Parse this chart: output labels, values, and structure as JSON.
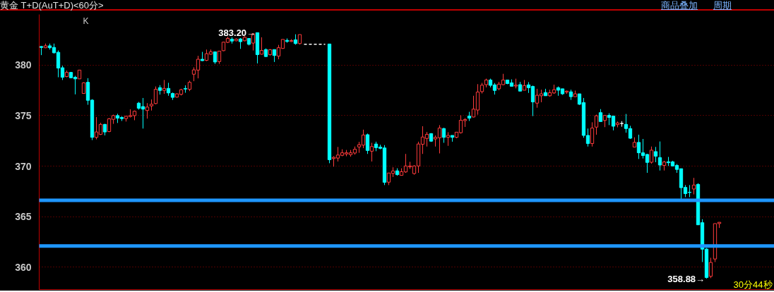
{
  "chart_data": {
    "type": "candlestick",
    "title": "黄金 T+D(AuT+D)<60分>",
    "annotations": [
      "K",
      "商品叠加",
      "周期",
      "30分44秒",
      "383.20→",
      "358.88→"
    ],
    "categories": [
      null,
      null,
      null,
      null,
      null,
      null,
      null,
      null,
      null,
      null,
      null,
      null,
      null,
      null,
      null,
      null,
      null,
      null,
      null,
      null,
      null,
      null,
      null,
      null,
      null,
      null,
      null,
      null,
      null,
      null,
      null,
      null,
      null,
      null,
      null,
      null,
      null,
      null,
      null,
      null,
      null,
      null,
      null,
      null,
      null,
      null,
      null,
      null,
      null,
      null,
      null,
      null,
      null,
      null,
      null,
      null,
      null,
      null,
      null,
      null,
      null,
      null,
      null,
      null,
      null,
      null,
      null,
      null,
      null,
      null,
      null,
      null,
      null,
      null,
      null,
      null,
      null,
      null,
      null,
      null,
      null,
      null,
      null,
      null,
      null,
      null,
      null,
      null,
      null,
      null,
      null,
      null,
      null,
      null,
      null,
      null,
      null,
      null,
      null,
      null,
      null,
      null,
      null,
      null,
      null,
      null,
      null,
      null,
      null,
      null,
      null,
      null,
      null,
      null,
      null,
      null,
      null,
      null,
      null,
      null,
      null,
      null,
      null,
      null,
      null,
      null,
      null,
      null,
      null,
      null,
      null,
      null,
      null,
      null,
      null,
      null,
      null,
      null,
      null,
      null,
      null,
      null,
      null,
      null,
      null,
      null,
      null,
      null,
      null,
      null,
      null,
      null,
      null,
      null,
      null,
      null,
      null,
      null,
      null,
      null,
      null
    ],
    "ylim": [
      357.8,
      385
    ],
    "yticks": [
      360,
      365,
      370,
      375,
      380
    ],
    "grid": "y",
    "tick_labels": "y",
    "ref_lines": [
      {
        "axis": "y",
        "value": 366.62,
        "color": "#1e96ff"
      },
      {
        "axis": "y",
        "value": 362.1,
        "color": "#1e96ff"
      }
    ],
    "series": [
      {
        "ohlc": [
          [
            381.83,
            381.87,
            380.98,
            381.74
          ],
          [
            381.71,
            382.12,
            381.67,
            381.9
          ],
          [
            381.9,
            382.12,
            381.53,
            381.71
          ],
          [
            381.74,
            382.12,
            381.14,
            381.21
          ],
          [
            381.26,
            381.44,
            378.79,
            379.7
          ],
          [
            379.73,
            379.93,
            378.52,
            378.79
          ],
          [
            378.86,
            379.45,
            378.79,
            379.27
          ],
          [
            379.27,
            379.32,
            378.7,
            378.74
          ],
          [
            378.79,
            378.93,
            377.1,
            378.63
          ],
          [
            378.63,
            379.5,
            378.63,
            379.5
          ],
          [
            377.19,
            378.29,
            377.15,
            378.24
          ],
          [
            378.29,
            378.7,
            376.07,
            376.51
          ],
          [
            376.53,
            376.62,
            372.58,
            372.85
          ],
          [
            372.85,
            374.86,
            372.65,
            373.38
          ],
          [
            373.15,
            374.29,
            373.08,
            374.13
          ],
          [
            374.13,
            374.18,
            373.04,
            373.38
          ],
          [
            373.42,
            374.75,
            373.36,
            374.68
          ],
          [
            374.63,
            375.09,
            374.18,
            375.0
          ],
          [
            375.0,
            375.18,
            374.27,
            374.75
          ],
          [
            374.82,
            374.93,
            374.47,
            374.7
          ],
          [
            374.7,
            374.98,
            374.41,
            374.93
          ],
          [
            374.91,
            375.62,
            374.82,
            375.0
          ],
          [
            375.0,
            375.5,
            374.54,
            375.43
          ],
          [
            376.23,
            376.35,
            375.59,
            375.73
          ],
          [
            375.89,
            376.74,
            373.72,
            375.64
          ],
          [
            375.5,
            376.23,
            374.7,
            375.84
          ],
          [
            375.96,
            376.6,
            375.5,
            376.12
          ],
          [
            376.19,
            377.88,
            376.12,
            377.6
          ],
          [
            377.76,
            378.01,
            377.08,
            377.49
          ],
          [
            377.49,
            378.52,
            377.15,
            377.69
          ],
          [
            377.69,
            378.24,
            376.96,
            377.24
          ],
          [
            377.19,
            377.28,
            376.55,
            376.8
          ],
          [
            376.83,
            377.19,
            376.78,
            377.15
          ],
          [
            377.1,
            377.65,
            376.99,
            377.56
          ],
          [
            377.67,
            377.99,
            377.26,
            377.63
          ],
          [
            377.6,
            378.45,
            377.42,
            378.29
          ],
          [
            379.09,
            379.77,
            378.4,
            379.52
          ],
          [
            379.5,
            380.91,
            378.68,
            380.57
          ],
          [
            380.57,
            381.3,
            380.39,
            380.43
          ],
          [
            380.46,
            381.53,
            380.39,
            381.12
          ],
          [
            381.07,
            381.53,
            381.03,
            381.3
          ],
          [
            381.3,
            381.3,
            380.11,
            380.3
          ],
          [
            380.34,
            381.37,
            380.11,
            381.37
          ],
          [
            381.42,
            382.31,
            381.37,
            382.26
          ],
          [
            382.24,
            382.79,
            382.17,
            382.63
          ],
          [
            382.56,
            382.74,
            382.12,
            382.37
          ],
          [
            382.4,
            382.63,
            382.35,
            382.56
          ],
          [
            382.58,
            382.67,
            381.6,
            382.31
          ],
          [
            382.4,
            382.85,
            382.35,
            382.74
          ],
          [
            382.63,
            382.63,
            381.94,
            382.05
          ],
          [
            382.17,
            383.15,
            381.44,
            383.08
          ],
          [
            383.2,
            383.2,
            380.16,
            381.03
          ],
          [
            381.07,
            382.74,
            381.03,
            381.44
          ],
          [
            381.53,
            381.64,
            380.8,
            380.84
          ],
          [
            381.03,
            381.58,
            380.94,
            381.51
          ],
          [
            381.53,
            381.53,
            380.3,
            380.94
          ],
          [
            380.89,
            381.99,
            380.57,
            381.71
          ],
          [
            381.64,
            382.53,
            381.6,
            382.53
          ],
          [
            382.44,
            382.63,
            382.21,
            382.33
          ],
          [
            382.33,
            382.56,
            382.28,
            382.42
          ],
          [
            382.49,
            383.04,
            382.01,
            382.12
          ],
          [
            382.12,
            383.01,
            382.03,
            383.01
          ],
          null,
          null,
          null,
          null,
          null,
          null,
          [
            382.08,
            382.08,
            370.29,
            370.64
          ],
          [
            370.75,
            370.98,
            369.95,
            370.87
          ],
          [
            370.8,
            371.9,
            370.46,
            371.1
          ],
          [
            371.07,
            371.67,
            370.98,
            371.32
          ],
          [
            371.21,
            371.6,
            370.98,
            371.32
          ],
          [
            371.14,
            371.6,
            370.94,
            371.32
          ],
          [
            371.3,
            371.94,
            371.14,
            371.67
          ],
          [
            371.9,
            372.4,
            371.32,
            372.12
          ],
          [
            372.08,
            373.61,
            371.78,
            373.08
          ],
          [
            373.11,
            373.22,
            371.21,
            371.55
          ],
          [
            371.48,
            372.31,
            370.46,
            371.94
          ],
          [
            372.19,
            372.42,
            371.48,
            371.83
          ],
          [
            371.89,
            372.12,
            371.67,
            371.76
          ],
          [
            371.8,
            372.08,
            368.13,
            368.4
          ],
          [
            368.42,
            369.32,
            368.13,
            369.32
          ],
          [
            369.29,
            369.89,
            368.93,
            369.52
          ],
          [
            369.54,
            369.79,
            369.06,
            369.16
          ],
          [
            369.09,
            369.79,
            369.09,
            369.45
          ],
          [
            369.43,
            371.21,
            369.34,
            370.02
          ],
          [
            369.93,
            370.43,
            369.73,
            370.02
          ],
          [
            369.27,
            370.09,
            369.16,
            370.02
          ],
          [
            370.02,
            372.42,
            369.34,
            372.19
          ],
          [
            372.17,
            373.95,
            371.21,
            372.88
          ],
          [
            372.74,
            373.38,
            371.94,
            373.15
          ],
          [
            373.22,
            373.26,
            372.4,
            372.47
          ],
          [
            372.69,
            373.04,
            371.94,
            372.85
          ],
          [
            372.81,
            374.06,
            371.26,
            373.77
          ],
          [
            373.72,
            373.79,
            372.31,
            372.85
          ],
          [
            372.85,
            373.36,
            372.01,
            373.04
          ],
          [
            373.04,
            373.04,
            372.42,
            372.85
          ],
          [
            372.85,
            373.36,
            372.76,
            373.36
          ],
          [
            373.31,
            375.02,
            373.22,
            374.54
          ],
          [
            374.5,
            374.75,
            373.88,
            374.61
          ],
          [
            374.95,
            375.37,
            374.47,
            374.75
          ],
          [
            374.86,
            376.96,
            374.82,
            375.64
          ],
          [
            375.55,
            378.11,
            375.09,
            377.33
          ],
          [
            377.37,
            378.24,
            377.19,
            378.01
          ],
          [
            378.06,
            378.65,
            377.79,
            378.52
          ],
          [
            378.52,
            378.65,
            377.79,
            377.99
          ],
          [
            378.04,
            378.22,
            377.08,
            377.49
          ],
          [
            377.65,
            378.33,
            377.51,
            378.11
          ],
          [
            378.06,
            379.13,
            378.01,
            378.52
          ],
          [
            378.52,
            378.52,
            378.1,
            378.17
          ],
          [
            378.24,
            378.58,
            377.9,
            377.9
          ],
          [
            377.92,
            378.65,
            377.69,
            378.01
          ],
          [
            378.06,
            378.33,
            377.42,
            377.42
          ],
          [
            377.51,
            378.52,
            377.51,
            377.97
          ],
          [
            378.04,
            378.31,
            377.24,
            377.76
          ],
          [
            377.88,
            377.97,
            374.95,
            376.35
          ],
          [
            376.23,
            377.65,
            375.78,
            377.01
          ],
          [
            376.96,
            377.56,
            376.32,
            377.15
          ],
          [
            377.28,
            377.65,
            376.96,
            376.96
          ],
          [
            376.96,
            377.56,
            376.87,
            377.26
          ],
          [
            377.24,
            378.06,
            377.15,
            377.56
          ],
          [
            377.76,
            377.88,
            376.96,
            377.51
          ],
          [
            377.65,
            377.65,
            377.05,
            377.15
          ],
          [
            377.33,
            377.47,
            377.15,
            377.42
          ],
          [
            377.35,
            377.56,
            376.55,
            376.87
          ],
          [
            376.87,
            377.47,
            376.87,
            377.15
          ],
          [
            377.15,
            377.15,
            376.05,
            376.12
          ],
          [
            376.28,
            376.74,
            372.81,
            373.04
          ],
          [
            373.04,
            373.72,
            371.94,
            372.24
          ],
          [
            372.24,
            374.34,
            371.94,
            373.77
          ],
          [
            373.86,
            375.09,
            373.11,
            374.98
          ],
          [
            375.29,
            375.64,
            374.41,
            374.41
          ],
          [
            374.52,
            375.02,
            373.86,
            375.02
          ],
          [
            375.02,
            375.23,
            374.06,
            374.82
          ],
          [
            374.95,
            374.95,
            373.54,
            373.95
          ],
          [
            374.11,
            374.41,
            373.84,
            374.27
          ],
          [
            374.22,
            374.45,
            373.9,
            374.22
          ],
          [
            374.13,
            375.16,
            373.31,
            373.72
          ],
          [
            373.72,
            373.99,
            372.69,
            372.76
          ],
          [
            371.89,
            372.85,
            371.89,
            372.35
          ],
          [
            372.35,
            373.11,
            370.71,
            371.32
          ],
          [
            371.32,
            372.69,
            370.76,
            371.05
          ],
          [
            371.16,
            371.21,
            369.34,
            370.37
          ],
          [
            370.39,
            371.94,
            370.25,
            371.58
          ],
          [
            371.44,
            371.9,
            370.39,
            370.99
          ],
          [
            370.85,
            372.44,
            369.57,
            370.11
          ],
          [
            370.07,
            370.53,
            369.57,
            370.41
          ],
          [
            370.43,
            370.91,
            370.02,
            370.34
          ],
          [
            370.43,
            370.53,
            369.98,
            370.02
          ],
          [
            370.07,
            370.21,
            369.34,
            369.68
          ],
          [
            369.75,
            369.75,
            366.76,
            367.87
          ],
          [
            367.9,
            368.13,
            366.94,
            367.28
          ],
          [
            367.42,
            368.13,
            366.94,
            367.4
          ],
          [
            367.74,
            368.84,
            367.21,
            368.13
          ],
          [
            368.2,
            368.31,
            364.2,
            364.2
          ],
          [
            364.41,
            364.75,
            360.52,
            361.79
          ],
          [
            361.8,
            361.9,
            358.88,
            358.99
          ],
          [
            359.11,
            360.94,
            358.93,
            360.48
          ],
          [
            360.82,
            364.32,
            360.52,
            364.32
          ],
          [
            364.32,
            364.45,
            363.89,
            364.45
          ]
        ],
        "colors": [
          "#00ffff",
          "#ff3b3b",
          "#00ffff",
          "#00ffff",
          "#00ffff",
          "#00ffff",
          "#ff3b3b",
          "#00ffff",
          "#00ffff",
          "#ff3b3b",
          "#ff3b3b",
          "#00ffff",
          "#00ffff",
          "#ff3b3b",
          "#ff3b3b",
          "#00ffff",
          "#ff3b3b",
          "#ff3b3b",
          "#00ffff",
          "#00ffff",
          "#ff3b3b",
          "#ff3b3b",
          "#ff3b3b",
          "#00ffff",
          "#00ffff",
          "#ff3b3b",
          "#ff3b3b",
          "#ff3b3b",
          "#00ffff",
          "#ff3b3b",
          "#00ffff",
          "#00ffff",
          "#ff3b3b",
          "#ff3b3b",
          "#00ffff",
          "#ff3b3b",
          "#ff3b3b",
          "#ff3b3b",
          "#00ffff",
          "#ff3b3b",
          "#ff3b3b",
          "#00ffff",
          "#ff3b3b",
          "#ff3b3b",
          "#ff3b3b",
          "#00ffff",
          "#ff3b3b",
          "#00ffff",
          "#ff3b3b",
          "#00ffff",
          "#ff3b3b",
          "#00ffff",
          "#ff3b3b",
          "#00ffff",
          "#ff3b3b",
          "#00ffff",
          "#ff3b3b",
          "#ff3b3b",
          "#00ffff",
          "#ff3b3b",
          "#00ffff",
          "#ff3b3b",
          null,
          null,
          null,
          null,
          null,
          null,
          "#00ffff",
          "#ff3b3b",
          "#ff3b3b",
          "#ff3b3b",
          "#ff3b3b",
          "#ff3b3b",
          "#ff3b3b",
          "#ff3b3b",
          "#ff3b3b",
          "#00ffff",
          "#ff3b3b",
          "#00ffff",
          "#00ffff",
          "#00ffff",
          "#ff3b3b",
          "#ff3b3b",
          "#00ffff",
          "#ff3b3b",
          "#ff3b3b",
          "#ff3b3b",
          "#ff3b3b",
          "#ff3b3b",
          "#ff3b3b",
          "#ff3b3b",
          "#00ffff",
          "#ff3b3b",
          "#ff3b3b",
          "#00ffff",
          "#ff3b3b",
          "#00ffff",
          "#ff3b3b",
          "#ff3b3b",
          "#ff3b3b",
          "#00ffff",
          "#ff3b3b",
          "#ff3b3b",
          "#ff3b3b",
          "#ff3b3b",
          "#00ffff",
          "#00ffff",
          "#ff3b3b",
          "#ff3b3b",
          "#00ffff",
          "#00ffff",
          "#ff3b3b",
          "#00ffff",
          "#ff3b3b",
          "#00ffff",
          "#00ffff",
          "#ff3b3b",
          "#ff3b3b",
          "#00ffff",
          "#ff3b3b",
          "#ff3b3b",
          "#00ffff",
          "#00ffff",
          "#ff3b3b",
          "#00ffff",
          "#ff3b3b",
          "#00ffff",
          "#00ffff",
          "#00ffff",
          "#ff3b3b",
          "#ff3b3b",
          "#00ffff",
          "#ff3b3b",
          "#00ffff",
          "#00ffff",
          "#ff3b3b",
          "#ffffff",
          "#00ffff",
          "#00ffff",
          "#ff3b3b",
          "#00ffff",
          "#00ffff",
          "#00ffff",
          "#ff3b3b",
          "#00ffff",
          "#00ffff",
          "#ff3b3b",
          "#00ffff",
          "#00ffff",
          "#00ffff",
          "#00ffff",
          "#00ffff",
          "#00ffff",
          "#ff3b3b",
          "#00ffff",
          "#00ffff",
          "#00ffff",
          "#ff3b3b",
          "#ff3b3b",
          "#ff3b3b"
        ]
      },
      {
        "type": "line",
        "color": "#ffffff",
        "line_style": "dashed",
        "values": [
          null,
          null,
          null,
          null,
          null,
          null,
          null,
          null,
          null,
          null,
          null,
          null,
          null,
          null,
          null,
          null,
          null,
          null,
          null,
          null,
          null,
          null,
          null,
          null,
          null,
          null,
          null,
          null,
          null,
          null,
          null,
          null,
          null,
          null,
          null,
          null,
          null,
          null,
          null,
          null,
          null,
          null,
          null,
          null,
          null,
          null,
          null,
          null,
          null,
          null,
          null,
          null,
          null,
          null,
          null,
          null,
          null,
          null,
          null,
          null,
          null,
          null,
          382.05,
          382.05,
          382.05,
          382.05,
          382.05,
          382.05,
          null,
          null,
          null,
          null,
          null,
          null,
          null,
          null,
          null,
          null,
          null,
          null,
          null,
          null,
          null,
          null,
          null,
          null,
          null,
          null,
          null,
          null,
          null,
          null,
          null,
          null,
          null,
          null,
          null,
          null,
          null,
          null,
          null,
          null,
          null,
          null,
          null,
          null,
          null,
          null,
          null,
          null,
          null,
          null,
          null,
          null,
          null,
          null,
          null,
          null,
          null,
          null,
          null,
          null,
          null,
          null,
          null,
          null,
          null,
          null,
          null,
          null,
          null,
          null,
          null,
          null,
          null,
          null,
          null,
          null,
          null,
          null,
          null,
          null,
          null,
          null,
          null,
          null,
          null,
          null,
          null,
          null,
          null,
          null,
          null,
          null,
          null,
          null,
          null,
          null,
          null,
          null,
          null
        ]
      }
    ]
  }
}
